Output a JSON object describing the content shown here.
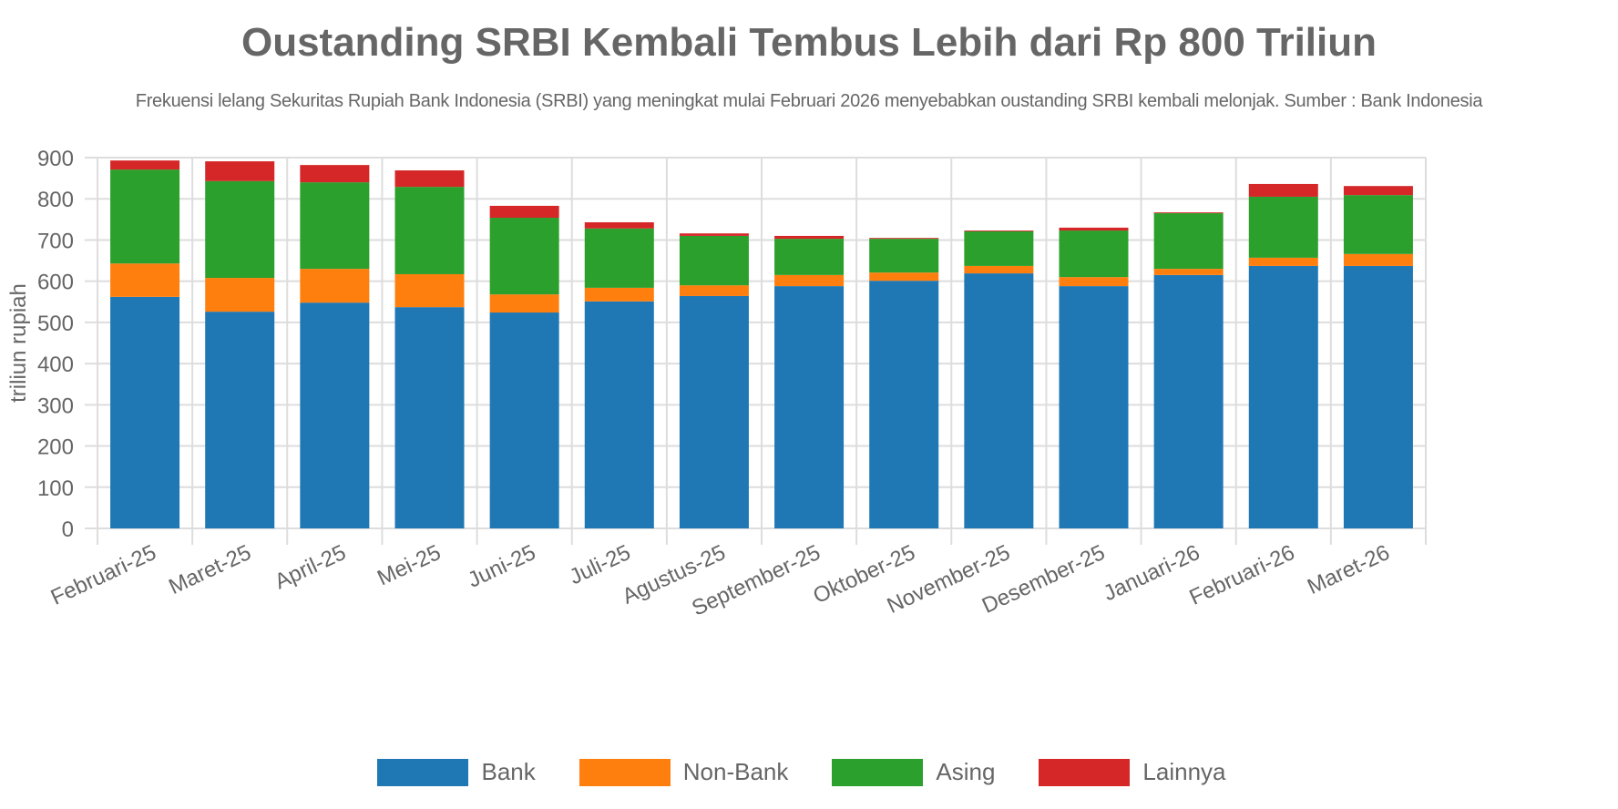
{
  "chart_data": {
    "type": "bar",
    "stacked": true,
    "title": "Oustanding SRBI Kembali Tembus Lebih dari Rp 800 Triliun",
    "subtitle": "Frekuensi lelang Sekuritas Rupiah Bank Indonesia (SRBI) yang meningkat mulai Februari 2026 menyebabkan oustanding SRBI kembali melonjak. Sumber : Bank Indonesia",
    "xlabel": "",
    "ylabel": "triliun rupiah",
    "ylim": [
      0,
      900
    ],
    "yticks": [
      0,
      100,
      200,
      300,
      400,
      500,
      600,
      700,
      800,
      900
    ],
    "grid": true,
    "legend_position": "bottom",
    "categories": [
      "Februari-25",
      "Maret-25",
      "April-25",
      "Mei-25",
      "Juni-25",
      "Juli-25",
      "Agustus-25",
      "September-25",
      "Oktober-25",
      "November-25",
      "Desember-25",
      "Januari-26",
      "Februari-26",
      "Maret-26"
    ],
    "series": [
      {
        "name": "Bank",
        "color": "#1f77b4",
        "values": [
          562,
          526,
          548,
          537,
          524,
          551,
          564,
          588,
          601,
          619,
          588,
          615,
          637,
          637
        ]
      },
      {
        "name": "Non-Bank",
        "color": "#ff7f0e",
        "values": [
          81,
          82,
          82,
          80,
          44,
          33,
          26,
          27,
          20,
          18,
          22,
          15,
          20,
          29
        ]
      },
      {
        "name": "Asing",
        "color": "#2ca02c",
        "values": [
          228,
          235,
          210,
          212,
          186,
          144,
          120,
          88,
          82,
          84,
          113,
          135,
          148,
          143
        ]
      },
      {
        "name": "Lainnya",
        "color": "#d62728",
        "values": [
          22,
          48,
          42,
          40,
          29,
          15,
          6,
          7,
          2,
          2,
          7,
          2,
          31,
          22
        ]
      }
    ]
  }
}
